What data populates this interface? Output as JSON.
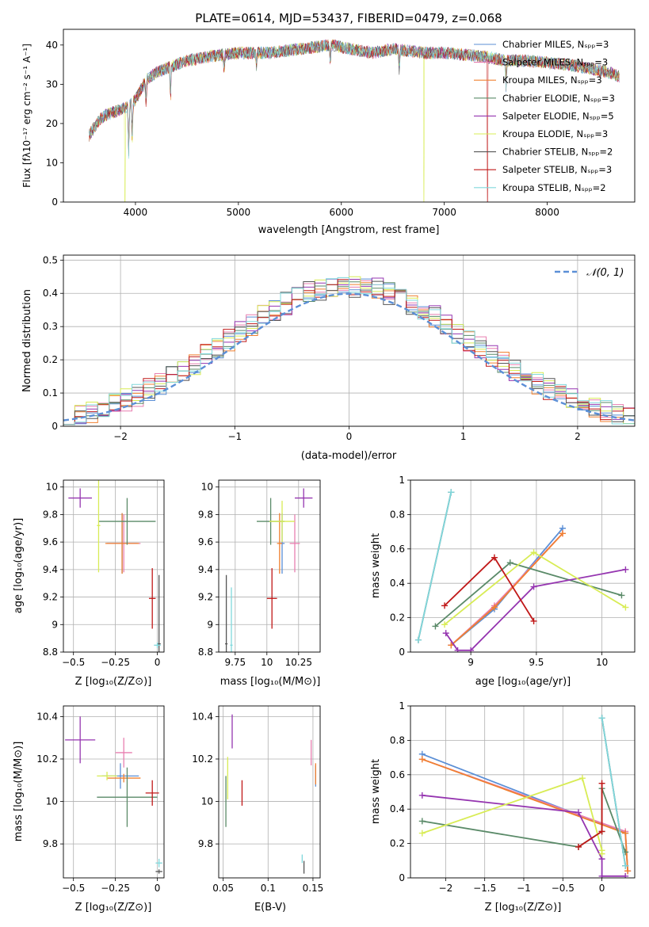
{
  "chart_data": [
    {
      "id": "spectrum",
      "type": "line",
      "title": "PLATE=0614, MJD=53437, FIBERID=0479, z=0.068",
      "xlabel": "wavelength [Angstrom, rest frame]",
      "ylabel": "Flux [fλ10⁻¹⁷ erg cm⁻² s⁻¹ A⁻¹]",
      "xlim": [
        3300,
        8850
      ],
      "ylim": [
        0,
        44
      ],
      "xticks": [
        4000,
        5000,
        6000,
        7000,
        8000
      ],
      "yticks": [
        0,
        10,
        20,
        30,
        40
      ],
      "grid": false,
      "legend_position": "top-right",
      "continuum": {
        "x": [
          3550,
          3650,
          3700,
          3800,
          3900,
          4000,
          4100,
          4200,
          4300,
          4400,
          4500,
          4700,
          5000,
          5300,
          5600,
          5900,
          6100,
          6300,
          6500,
          6800,
          7000,
          7200,
          7400,
          7600,
          7800,
          8000,
          8200,
          8400,
          8600,
          8700
        ],
        "y": [
          17,
          21,
          22,
          23,
          24,
          26,
          31,
          33,
          34,
          35,
          36,
          37,
          38,
          38,
          39,
          40,
          39,
          38,
          39,
          38,
          38,
          37.5,
          37,
          36,
          36,
          35.5,
          35,
          34,
          33,
          32
        ]
      },
      "legend": [
        {
          "label": "Chabrier MILES, Nₛₚₚ=3",
          "color": "#5b8fd6"
        },
        {
          "label": "Salpeter MILES, Nₛₚₚ=3",
          "color": "#e87fb0"
        },
        {
          "label": "Kroupa MILES, Nₛₚₚ=3",
          "color": "#f08030"
        },
        {
          "label": "Chabrier ELODIE, Nₛₚₚ=3",
          "color": "#5a8a68"
        },
        {
          "label": "Salpeter ELODIE, Nₛₚₚ=5",
          "color": "#9535b0"
        },
        {
          "label": "Kroupa ELODIE, Nₛₚₚ=3",
          "color": "#d8ec55"
        },
        {
          "label": "Chabrier STELIB, Nₛₚₚ=2",
          "color": "#555555"
        },
        {
          "label": "Salpeter STELIB, Nₛₚₚ=3",
          "color": "#c01818"
        },
        {
          "label": "Kroupa STELIB, Nₛₚₚ=2",
          "color": "#80d8dc"
        }
      ]
    },
    {
      "id": "histogram",
      "type": "bar",
      "xlabel": "(data-model)/error",
      "ylabel": "Normed distribution",
      "xlim": [
        -2.5,
        2.5
      ],
      "ylim": [
        0,
        0.515
      ],
      "xticks": [
        -2,
        -1,
        0,
        1,
        2
      ],
      "yticks": [
        0.0,
        0.1,
        0.2,
        0.3,
        0.4,
        0.5
      ],
      "grid": true,
      "legend_position": "top-right",
      "reference_curve": {
        "label": "𝒩(0, 1)",
        "color": "#5b8fd6",
        "style": "dashed"
      },
      "bin_width": 0.1,
      "series_colors": [
        "#5b8fd6",
        "#e87fb0",
        "#f08030",
        "#5a8a68",
        "#9535b0",
        "#d8ec55",
        "#555555",
        "#c01818",
        "#80d8dc"
      ]
    },
    {
      "id": "age-vs-z",
      "type": "scatter",
      "xlabel": "Z [log₁₀(Z/Z⊙)]",
      "ylabel": "age  [log₁₀(age/yr)]",
      "xlim": [
        -0.56,
        0.04
      ],
      "ylim": [
        8.8,
        10.05
      ],
      "xticks": [
        -0.5,
        -0.25,
        0.0
      ],
      "yticks": [
        8.8,
        9.0,
        9.2,
        9.4,
        9.6,
        9.8,
        10.0
      ],
      "grid": true,
      "points": [
        {
          "color": "#5b8fd6",
          "x": -0.21,
          "y": 9.59,
          "xerr": 0.09,
          "yerr": 0.22
        },
        {
          "color": "#e87fb0",
          "x": -0.2,
          "y": 9.59,
          "xerr": 0.1,
          "yerr": 0.21
        },
        {
          "color": "#f08030",
          "x": -0.21,
          "y": 9.59,
          "xerr": 0.1,
          "yerr": 0.22
        },
        {
          "color": "#5a8a68",
          "x": -0.18,
          "y": 9.75,
          "xerr": 0.17,
          "yerr": 0.17
        },
        {
          "color": "#9535b0",
          "x": -0.46,
          "y": 9.92,
          "xerr": 0.07,
          "yerr": 0.07
        },
        {
          "color": "#d8ec55",
          "x": -0.35,
          "y": 9.72,
          "xerr": 0.01,
          "yerr": 0.34
        },
        {
          "color": "#555555",
          "x": 0.01,
          "y": 8.86,
          "xerr": 0.01,
          "yerr": 0.5
        },
        {
          "color": "#c01818",
          "x": -0.03,
          "y": 9.19,
          "xerr": 0.02,
          "yerr": 0.22
        },
        {
          "color": "#80d8dc",
          "x": 0.0,
          "y": 8.85,
          "xerr": 0.02,
          "yerr": 0.02
        }
      ]
    },
    {
      "id": "age-vs-mass",
      "type": "scatter",
      "xlabel": "mass [log₁₀(M/M⊙)]",
      "ylabel": "",
      "xlim": [
        9.62,
        10.42
      ],
      "ylim": [
        8.8,
        10.05
      ],
      "xticks": [
        9.75,
        10.0,
        10.25
      ],
      "yticks": [
        8.8,
        9.0,
        9.2,
        9.4,
        9.6,
        9.8,
        10.0
      ],
      "grid": true,
      "points": [
        {
          "color": "#5b8fd6",
          "x": 10.12,
          "y": 9.59,
          "xerr": 0.02,
          "yerr": 0.22
        },
        {
          "color": "#e87fb0",
          "x": 10.22,
          "y": 9.59,
          "xerr": 0.04,
          "yerr": 0.21
        },
        {
          "color": "#f08030",
          "x": 10.1,
          "y": 9.59,
          "xerr": 0.02,
          "yerr": 0.22
        },
        {
          "color": "#5a8a68",
          "x": 10.03,
          "y": 9.75,
          "xerr": 0.11,
          "yerr": 0.17
        },
        {
          "color": "#9535b0",
          "x": 10.29,
          "y": 9.92,
          "xerr": 0.07,
          "yerr": 0.07
        },
        {
          "color": "#d8ec55",
          "x": 10.12,
          "y": 9.75,
          "xerr": 0.1,
          "yerr": 0.15
        },
        {
          "color": "#555555",
          "x": 9.68,
          "y": 8.86,
          "xerr": 0.01,
          "yerr": 0.5
        },
        {
          "color": "#c01818",
          "x": 10.04,
          "y": 9.19,
          "xerr": 0.04,
          "yerr": 0.22
        },
        {
          "color": "#80d8dc",
          "x": 9.72,
          "y": 8.85,
          "xerr": 0.01,
          "yerr": 0.42
        }
      ]
    },
    {
      "id": "massweight-vs-age",
      "type": "line",
      "xlabel": "age  [log₁₀(age/yr)]",
      "ylabel": "mass weight",
      "xlim": [
        8.54,
        10.25
      ],
      "ylim": [
        0,
        1
      ],
      "xticks": [
        9.0,
        9.5,
        10.0
      ],
      "yticks": [
        0.0,
        0.2,
        0.4,
        0.6,
        0.8,
        1.0
      ],
      "grid": true,
      "series": [
        {
          "color": "#5b8fd6",
          "x": [
            8.85,
            9.18,
            9.7
          ],
          "y": [
            0.04,
            0.25,
            0.72
          ]
        },
        {
          "color": "#e87fb0",
          "x": [
            8.85,
            9.18,
            9.7
          ],
          "y": [
            0.04,
            0.27,
            0.69
          ]
        },
        {
          "color": "#f08030",
          "x": [
            8.85,
            9.18,
            9.7
          ],
          "y": [
            0.04,
            0.26,
            0.69
          ]
        },
        {
          "color": "#5a8a68",
          "x": [
            8.73,
            9.3,
            10.15
          ],
          "y": [
            0.15,
            0.52,
            0.33
          ]
        },
        {
          "color": "#9535b0",
          "x": [
            8.81,
            8.9,
            9.0,
            9.48,
            10.18
          ],
          "y": [
            0.11,
            0.01,
            0.01,
            0.38,
            0.48
          ]
        },
        {
          "color": "#d8ec55",
          "x": [
            8.8,
            9.48,
            10.18
          ],
          "y": [
            0.16,
            0.58,
            0.26
          ]
        },
        {
          "color": "#555555",
          "x": [
            8.6,
            8.85
          ],
          "y": [
            0.07,
            0.93
          ]
        },
        {
          "color": "#c01818",
          "x": [
            8.8,
            9.18,
            9.48
          ],
          "y": [
            0.27,
            0.55,
            0.18
          ]
        },
        {
          "color": "#80d8dc",
          "x": [
            8.6,
            8.85
          ],
          "y": [
            0.07,
            0.93
          ]
        }
      ]
    },
    {
      "id": "mass-vs-z",
      "type": "scatter",
      "xlabel": "Z [log₁₀(Z/Z⊙)]",
      "ylabel": "mass [log₁₀(M/M⊙)]",
      "xlim": [
        -0.56,
        0.04
      ],
      "ylim": [
        9.64,
        10.45
      ],
      "xticks": [
        -0.5,
        -0.25,
        0.0
      ],
      "yticks": [
        9.8,
        10.0,
        10.2,
        10.4
      ],
      "grid": true,
      "points": [
        {
          "color": "#5b8fd6",
          "x": -0.22,
          "y": 10.12,
          "xerr": 0.11,
          "yerr": 0.06
        },
        {
          "color": "#e87fb0",
          "x": -0.2,
          "y": 10.23,
          "xerr": 0.05,
          "yerr": 0.07
        },
        {
          "color": "#f08030",
          "x": -0.2,
          "y": 10.11,
          "xerr": 0.1,
          "yerr": 0.02
        },
        {
          "color": "#5a8a68",
          "x": -0.18,
          "y": 10.02,
          "xerr": 0.18,
          "yerr": 0.14
        },
        {
          "color": "#9535b0",
          "x": -0.46,
          "y": 10.29,
          "xerr": 0.09,
          "yerr": 0.11
        },
        {
          "color": "#d8ec55",
          "x": -0.3,
          "y": 10.12,
          "xerr": 0.06,
          "yerr": 0.02
        },
        {
          "color": "#555555",
          "x": 0.01,
          "y": 9.67,
          "xerr": 0.02,
          "yerr": 0.01
        },
        {
          "color": "#c01818",
          "x": -0.03,
          "y": 10.04,
          "xerr": 0.04,
          "yerr": 0.06
        },
        {
          "color": "#80d8dc",
          "x": 0.01,
          "y": 9.71,
          "xerr": 0.02,
          "yerr": 0.02
        }
      ]
    },
    {
      "id": "mass-vs-ebv",
      "type": "scatter",
      "xlabel": "E(B-V)",
      "ylabel": "",
      "xlim": [
        0.045,
        0.158
      ],
      "ylim": [
        9.64,
        10.45
      ],
      "xticks": [
        0.05,
        0.1,
        0.15
      ],
      "yticks": [
        9.8,
        10.0,
        10.2,
        10.4
      ],
      "grid": true,
      "points": [
        {
          "color": "#5b8fd6",
          "x": 0.153,
          "y": 10.12,
          "xerr": 0.0,
          "yerr": 0.05
        },
        {
          "color": "#e87fb0",
          "x": 0.148,
          "y": 10.23,
          "xerr": 0.0,
          "yerr": 0.06
        },
        {
          "color": "#f08030",
          "x": 0.153,
          "y": 10.13,
          "xerr": 0.0,
          "yerr": 0.05
        },
        {
          "color": "#5a8a68",
          "x": 0.053,
          "y": 10.0,
          "xerr": 0.0,
          "yerr": 0.12
        },
        {
          "color": "#9535b0",
          "x": 0.06,
          "y": 10.33,
          "xerr": 0.0,
          "yerr": 0.08
        },
        {
          "color": "#d8ec55",
          "x": 0.055,
          "y": 10.11,
          "xerr": 0.0,
          "yerr": 0.1
        },
        {
          "color": "#555555",
          "x": 0.14,
          "y": 9.69,
          "xerr": 0.0,
          "yerr": 0.03
        },
        {
          "color": "#c01818",
          "x": 0.071,
          "y": 10.04,
          "xerr": 0.0,
          "yerr": 0.06
        },
        {
          "color": "#80d8dc",
          "x": 0.138,
          "y": 9.73,
          "xerr": 0.0,
          "yerr": 0.02
        }
      ]
    },
    {
      "id": "massweight-vs-z",
      "type": "line",
      "xlabel": "Z [log₁₀(Z/Z⊙)]",
      "ylabel": "mass weight",
      "xlim": [
        -2.45,
        0.42
      ],
      "ylim": [
        0,
        1
      ],
      "xticks": [
        -2.0,
        -1.5,
        -1.0,
        -0.5,
        0.0
      ],
      "yticks": [
        0.0,
        0.2,
        0.4,
        0.6,
        0.8,
        1.0
      ],
      "grid": true,
      "series": [
        {
          "color": "#5b8fd6",
          "x": [
            -2.3,
            0.3,
            0.33
          ],
          "y": [
            0.72,
            0.26,
            0.04
          ]
        },
        {
          "color": "#e87fb0",
          "x": [
            -2.3,
            0.3,
            0.33
          ],
          "y": [
            0.69,
            0.27,
            0.04
          ]
        },
        {
          "color": "#f08030",
          "x": [
            -2.3,
            0.3,
            0.33
          ],
          "y": [
            0.69,
            0.26,
            0.04
          ]
        },
        {
          "color": "#5a8a68",
          "x": [
            -2.3,
            -0.3,
            0.0,
            0.0,
            0.3
          ],
          "y": [
            0.33,
            0.18,
            0.27,
            0.52,
            0.15
          ]
        },
        {
          "color": "#9535b0",
          "x": [
            -2.3,
            -0.3,
            0.0,
            0.0,
            0.3
          ],
          "y": [
            0.48,
            0.38,
            0.11,
            0.01,
            0.01
          ]
        },
        {
          "color": "#d8ec55",
          "x": [
            -2.3,
            -0.25,
            0.0,
            0.0
          ],
          "y": [
            0.26,
            0.58,
            0.16,
            0.14
          ]
        },
        {
          "color": "#555555",
          "x": [
            0.0,
            0.3
          ],
          "y": [
            0.93,
            0.07
          ]
        },
        {
          "color": "#c01818",
          "x": [
            -0.3,
            0.0,
            0.0
          ],
          "y": [
            0.18,
            0.27,
            0.55
          ]
        },
        {
          "color": "#80d8dc",
          "x": [
            0.0,
            0.3
          ],
          "y": [
            0.93,
            0.07
          ]
        }
      ]
    }
  ]
}
